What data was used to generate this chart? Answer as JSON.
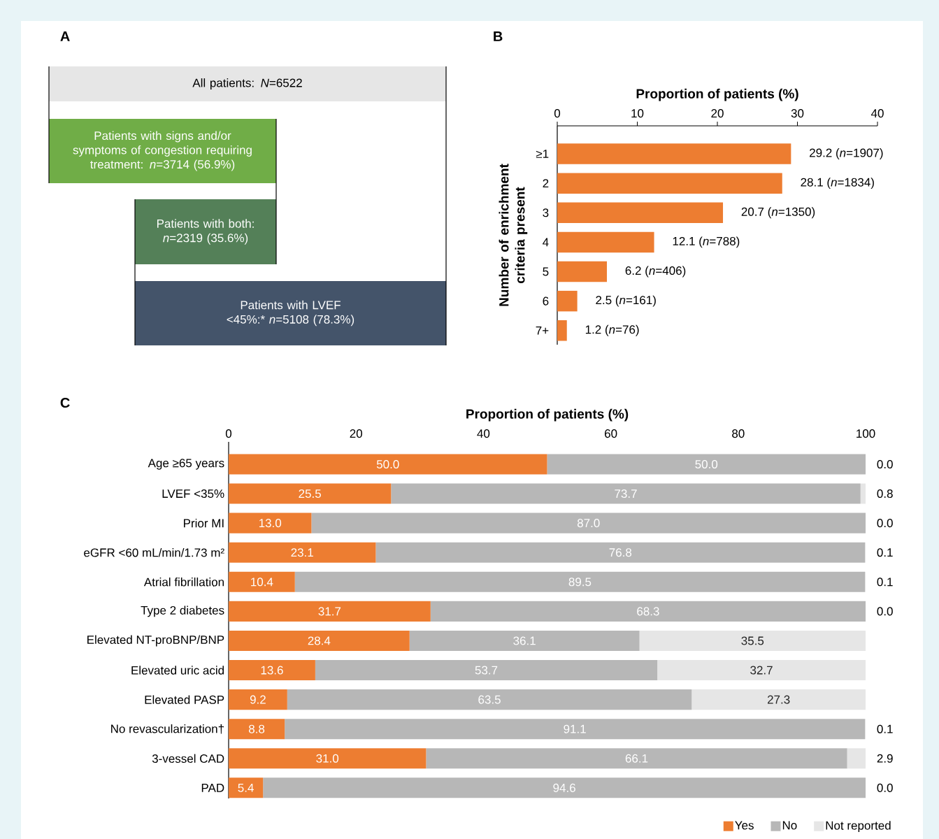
{
  "chart_data": [
    {
      "type": "other",
      "title": "A",
      "annotations": [
        "All patients: *N*=6522",
        "Patients with signs and/or symptoms of congestion requiring treatment: *n*=3714 (56.9%)",
        "Patients with both: *n*=2319 (35.6%)",
        "Patients with LVEF <45%:* *n*=5108 (78.3%)"
      ],
      "colors": [
        "#e6e6e6",
        "#70ad47",
        "#548058",
        "#44546a"
      ]
    },
    {
      "type": "bar",
      "title": "B",
      "orientation": "horizontal",
      "xlabel": "Proportion of patients (%)",
      "ylabel": "Number of enrichment criteria present",
      "categories": [
        "≥1",
        "2",
        "3",
        "4",
        "5",
        "6",
        "7+"
      ],
      "values": [
        29.2,
        28.1,
        20.7,
        12.1,
        6.2,
        2.5,
        1.2
      ],
      "color": "#ed7d31",
      "value_labels": [
        "29.2 (*n*=1907)",
        "28.1 (*n*=1834)",
        "20.7 (*n*=1350)",
        "12.1 (*n*=788)",
        "6.2 (*n*=406)",
        "2.5 (*n*=161)",
        "1.2 (*n*=76)"
      ],
      "xlim": [
        0,
        40
      ],
      "xticks": [
        0,
        10,
        20,
        30,
        40
      ]
    },
    {
      "type": "bar",
      "title": "C",
      "orientation": "horizontal",
      "stacked": true,
      "legend": "bottom right",
      "xlabel": "Proportion of patients (%)",
      "categories": [
        "Age ≥65 years",
        "LVEF <35%",
        "Prior MI",
        "eGFR <60 mL/min/1.73 m²",
        "Atrial fibrillation",
        "Type 2 diabetes",
        "Elevated NT-proBNP/BNP",
        "Elevated uric acid",
        "Elevated PASP",
        "No revascularization†",
        "3-vessel CAD",
        "PAD"
      ],
      "xlim": [
        0,
        100
      ],
      "xticks": [
        0,
        20,
        40,
        60,
        80,
        100
      ],
      "series": [
        {
          "name": "Yes",
          "color": "#ed7d31",
          "values": [
            50.0,
            25.5,
            13.0,
            23.1,
            10.4,
            31.7,
            28.4,
            13.6,
            9.2,
            8.8,
            31.0,
            5.4
          ],
          "value_labels": [
            "50.0",
            "25.5",
            "13.0",
            "23.1",
            "10.4",
            "31.7",
            "28.4",
            "13.6",
            "9.2",
            "8.8",
            "31.0",
            "5.4"
          ]
        },
        {
          "name": "No",
          "color": "#b7b7b7",
          "values": [
            50.0,
            73.7,
            87.0,
            76.8,
            89.5,
            68.3,
            36.1,
            53.7,
            63.5,
            91.1,
            66.1,
            94.6
          ],
          "value_labels": [
            "50.0",
            "73.7",
            "87.0",
            "76.8",
            "89.5",
            "68.3",
            "36.1",
            "53.7",
            "63.5",
            "91.1",
            "66.1",
            "94.6"
          ]
        },
        {
          "name": "Not reported",
          "color": "#e6e6e6",
          "values": [
            0.0,
            0.8,
            0.0,
            0.1,
            0.1,
            0.0,
            35.5,
            32.7,
            27.3,
            0.1,
            2.9,
            0.0
          ],
          "value_labels": [
            "0.0",
            "0.8",
            "0.0",
            "0.1",
            "0.1",
            "0.0",
            "35.5",
            "32.7",
            "27.3",
            "0.1",
            "2.9",
            "0.0"
          ]
        }
      ]
    }
  ]
}
